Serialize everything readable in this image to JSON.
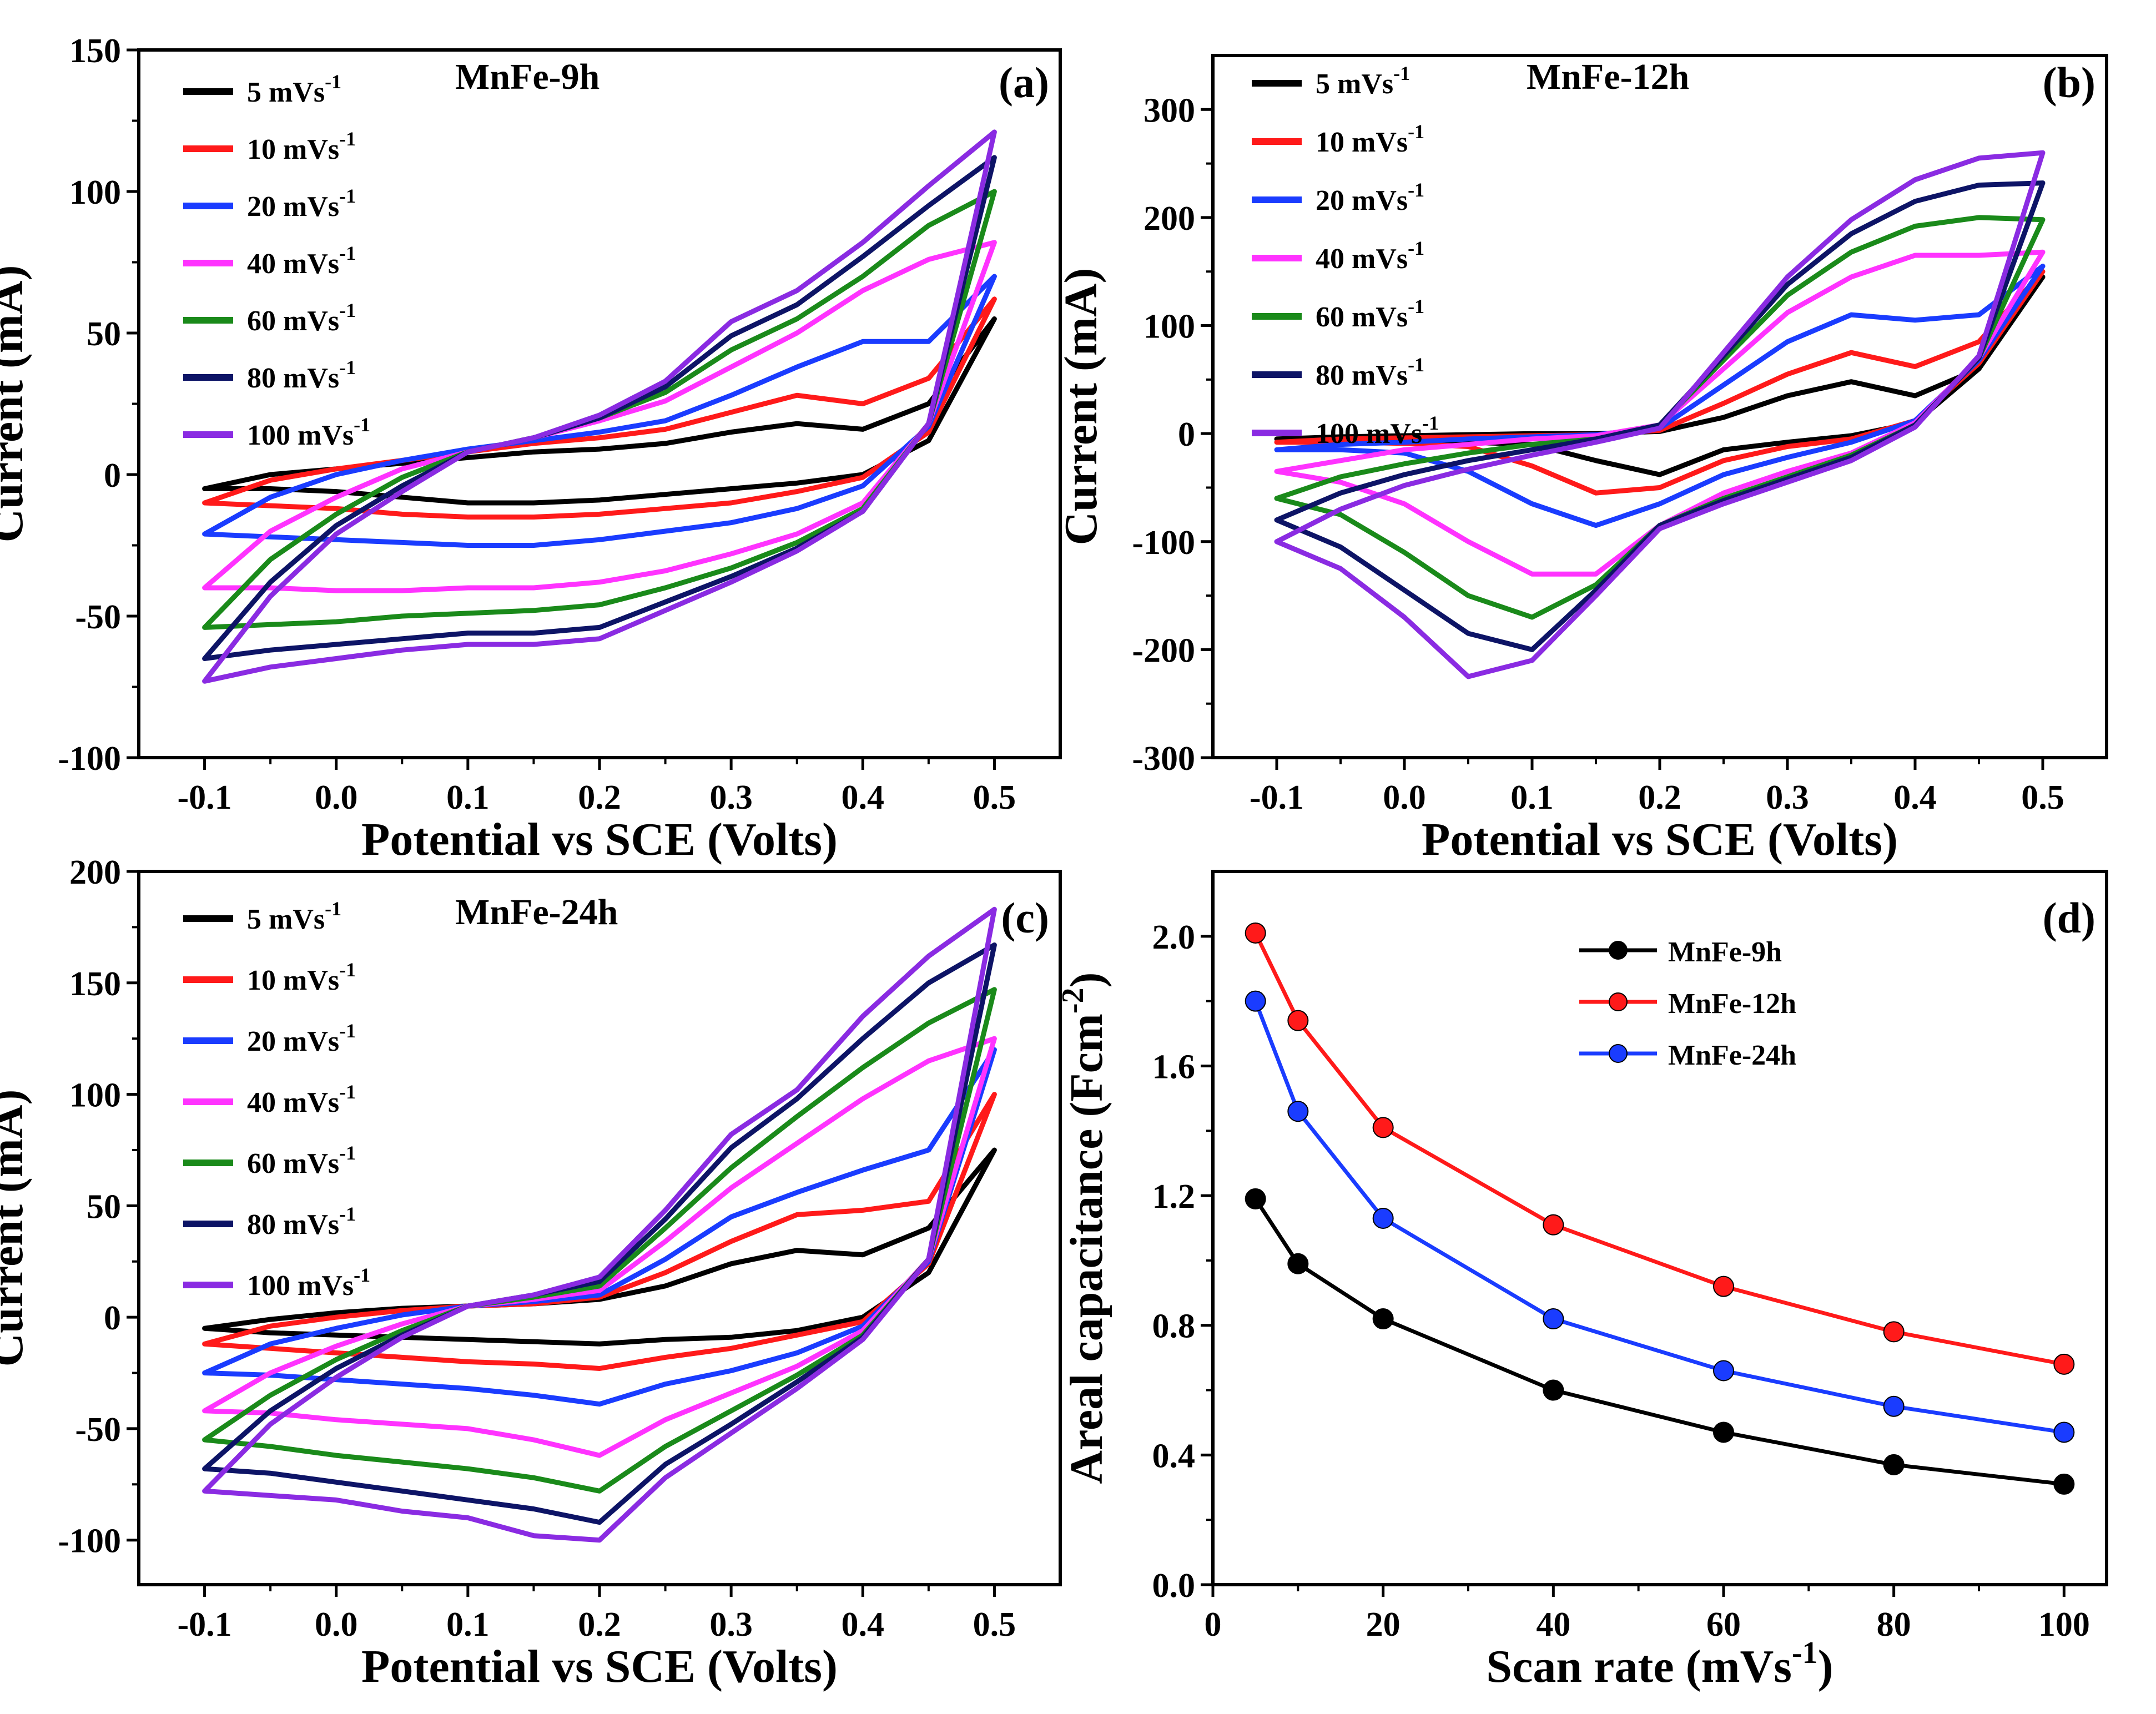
{
  "colors": {
    "5": "#000000",
    "10": "#ff1a1a",
    "20": "#1a3cff",
    "40": "#ff33ff",
    "60": "#1a8a1a",
    "80": "#0d1466",
    "100": "#8a2be2"
  },
  "rate_labels": {
    "5": "5 mVs",
    "10": "10 mVs",
    "20": "20 mVs",
    "40": "40 mVs",
    "60": "60 mVs",
    "80": "80 mVs",
    "100": "100 mVs"
  },
  "rate_unit_exponent": "-1",
  "chart_data": [
    {
      "type": "line",
      "panel": "(a)",
      "title": "MnFe-9h",
      "xlabel": "Potential vs SCE (Volts)",
      "ylabel": "Current  (mA)",
      "xlim": [
        -0.15,
        0.55
      ],
      "ylim": [
        -100,
        150
      ],
      "xticks": [
        -0.1,
        0.0,
        0.1,
        0.2,
        0.3,
        0.4,
        0.5
      ],
      "xtick_labels": [
        "-0.1",
        "0.0",
        "0.1",
        "0.2",
        "0.3",
        "0.4",
        "0.5"
      ],
      "yticks": [
        -100,
        -50,
        0,
        50,
        100,
        150
      ],
      "ytick_labels": [
        "-100",
        "-50",
        "0",
        "50",
        "100",
        "150"
      ],
      "x": [
        -0.1,
        -0.05,
        0.0,
        0.05,
        0.1,
        0.15,
        0.2,
        0.25,
        0.3,
        0.35,
        0.4,
        0.45,
        0.5
      ],
      "series": [
        {
          "rate": "5",
          "anodic": [
            -5,
            0,
            2,
            4,
            6,
            8,
            9,
            11,
            15,
            18,
            16,
            25,
            55
          ],
          "cathodic": [
            -5,
            -5,
            -6,
            -8,
            -10,
            -10,
            -9,
            -7,
            -5,
            -3,
            0,
            12,
            55
          ]
        },
        {
          "rate": "10",
          "anodic": [
            -10,
            -2,
            2,
            5,
            8,
            11,
            13,
            16,
            22,
            28,
            25,
            34,
            62
          ],
          "cathodic": [
            -10,
            -11,
            -12,
            -14,
            -15,
            -15,
            -14,
            -12,
            -10,
            -6,
            -1,
            15,
            62
          ]
        },
        {
          "rate": "20",
          "anodic": [
            -21,
            -8,
            0,
            5,
            9,
            12,
            15,
            19,
            28,
            38,
            47,
            47,
            70
          ],
          "cathodic": [
            -21,
            -22,
            -23,
            -24,
            -25,
            -25,
            -23,
            -20,
            -17,
            -12,
            -4,
            17,
            70
          ]
        },
        {
          "rate": "40",
          "anodic": [
            -40,
            -20,
            -8,
            2,
            8,
            13,
            19,
            26,
            38,
            50,
            65,
            76,
            82
          ],
          "cathodic": [
            -40,
            -40,
            -41,
            -41,
            -40,
            -40,
            -38,
            -34,
            -28,
            -21,
            -10,
            18,
            82
          ]
        },
        {
          "rate": "60",
          "anodic": [
            -54,
            -30,
            -14,
            -1,
            8,
            13,
            20,
            29,
            44,
            55,
            70,
            88,
            100
          ],
          "cathodic": [
            -54,
            -53,
            -52,
            -50,
            -49,
            -48,
            -46,
            -40,
            -33,
            -24,
            -12,
            18,
            100
          ]
        },
        {
          "rate": "80",
          "anodic": [
            -65,
            -38,
            -18,
            -4,
            8,
            13,
            20,
            31,
            49,
            60,
            77,
            95,
            112
          ],
          "cathodic": [
            -65,
            -62,
            -60,
            -58,
            -56,
            -56,
            -54,
            -45,
            -36,
            -26,
            -13,
            18,
            112
          ]
        },
        {
          "rate": "100",
          "anodic": [
            -73,
            -43,
            -21,
            -6,
            8,
            13,
            21,
            33,
            54,
            65,
            82,
            102,
            121
          ],
          "cathodic": [
            -73,
            -68,
            -65,
            -62,
            -60,
            -60,
            -58,
            -48,
            -38,
            -27,
            -13,
            18,
            121
          ]
        }
      ]
    },
    {
      "type": "line",
      "panel": "(b)",
      "title": "MnFe-12h",
      "xlabel": "Potential vs SCE (Volts)",
      "ylabel": "Current  (mA)",
      "xlim": [
        -0.15,
        0.55
      ],
      "ylim": [
        -300,
        350
      ],
      "xticks": [
        -0.1,
        0.0,
        0.1,
        0.2,
        0.3,
        0.4,
        0.5
      ],
      "xtick_labels": [
        "-0.1",
        "0.0",
        "0.1",
        "0.2",
        "0.3",
        "0.4",
        "0.5"
      ],
      "yticks": [
        -300,
        -200,
        -100,
        0,
        100,
        200,
        300
      ],
      "ytick_labels": [
        "-300",
        "-200",
        "-100",
        "0",
        "100",
        "200",
        "300"
      ],
      "x": [
        -0.1,
        -0.05,
        0.0,
        0.05,
        0.1,
        0.15,
        0.2,
        0.25,
        0.3,
        0.35,
        0.4,
        0.45,
        0.5
      ],
      "series": [
        {
          "rate": "5",
          "anodic": [
            -5,
            -3,
            -2,
            -1,
            0,
            0,
            2,
            15,
            35,
            48,
            35,
            60,
            145
          ],
          "cathodic": [
            -5,
            -6,
            -7,
            -8,
            -10,
            -25,
            -38,
            -15,
            -8,
            -2,
            10,
            60,
            145
          ]
        },
        {
          "rate": "10",
          "anodic": [
            -8,
            -5,
            -4,
            -3,
            -2,
            -1,
            3,
            28,
            55,
            75,
            62,
            85,
            150
          ],
          "cathodic": [
            -8,
            -8,
            -9,
            -12,
            -30,
            -55,
            -50,
            -25,
            -12,
            -5,
            12,
            65,
            150
          ]
        },
        {
          "rate": "20",
          "anodic": [
            -15,
            -10,
            -8,
            -5,
            -3,
            -1,
            5,
            45,
            85,
            110,
            105,
            110,
            155
          ],
          "cathodic": [
            -15,
            -15,
            -18,
            -35,
            -65,
            -85,
            -65,
            -38,
            -22,
            -8,
            12,
            68,
            155
          ]
        },
        {
          "rate": "40",
          "anodic": [
            -35,
            -25,
            -15,
            -10,
            -5,
            -2,
            8,
            60,
            112,
            145,
            165,
            165,
            168
          ],
          "cathodic": [
            -35,
            -45,
            -65,
            -100,
            -130,
            -130,
            -85,
            -55,
            -35,
            -18,
            10,
            70,
            168
          ]
        },
        {
          "rate": "60",
          "anodic": [
            -60,
            -40,
            -28,
            -18,
            -10,
            -5,
            8,
            68,
            128,
            168,
            192,
            200,
            198
          ],
          "cathodic": [
            -60,
            -75,
            -110,
            -150,
            -170,
            -140,
            -85,
            -60,
            -40,
            -20,
            8,
            70,
            198
          ]
        },
        {
          "rate": "80",
          "anodic": [
            -80,
            -55,
            -38,
            -25,
            -15,
            -5,
            8,
            72,
            138,
            185,
            215,
            230,
            232
          ],
          "cathodic": [
            -80,
            -105,
            -145,
            -185,
            -200,
            -145,
            -85,
            -62,
            -42,
            -22,
            8,
            70,
            232
          ]
        },
        {
          "rate": "100",
          "anodic": [
            -100,
            -70,
            -48,
            -33,
            -20,
            -8,
            5,
            75,
            145,
            198,
            235,
            255,
            260
          ],
          "cathodic": [
            -100,
            -125,
            -170,
            -225,
            -210,
            -150,
            -88,
            -65,
            -45,
            -25,
            6,
            72,
            260
          ]
        }
      ]
    },
    {
      "type": "line",
      "panel": "(c)",
      "title": "MnFe-24h",
      "xlabel": "Potential vs SCE (Volts)",
      "ylabel": "Current  (mA)",
      "xlim": [
        -0.15,
        0.55
      ],
      "ylim": [
        -120,
        200
      ],
      "xticks": [
        -0.1,
        0.0,
        0.1,
        0.2,
        0.3,
        0.4,
        0.5
      ],
      "xtick_labels": [
        "-0.1",
        "0.0",
        "0.1",
        "0.2",
        "0.3",
        "0.4",
        "0.5"
      ],
      "yticks": [
        -100,
        -50,
        0,
        50,
        100,
        150,
        200
      ],
      "ytick_labels": [
        "-100",
        "-50",
        "0",
        "50",
        "100",
        "150",
        "200"
      ],
      "x": [
        -0.1,
        -0.05,
        0.0,
        0.05,
        0.1,
        0.15,
        0.2,
        0.25,
        0.3,
        0.35,
        0.4,
        0.45,
        0.5
      ],
      "series": [
        {
          "rate": "5",
          "anodic": [
            -5,
            -1,
            2,
            4,
            5,
            6,
            8,
            14,
            24,
            30,
            28,
            40,
            75
          ],
          "cathodic": [
            -5,
            -7,
            -8,
            -9,
            -10,
            -11,
            -12,
            -10,
            -9,
            -6,
            0,
            20,
            75
          ]
        },
        {
          "rate": "10",
          "anodic": [
            -12,
            -4,
            0,
            3,
            5,
            6,
            9,
            20,
            34,
            46,
            48,
            52,
            100
          ],
          "cathodic": [
            -12,
            -14,
            -16,
            -18,
            -20,
            -21,
            -23,
            -18,
            -14,
            -8,
            -2,
            24,
            100
          ]
        },
        {
          "rate": "20",
          "anodic": [
            -25,
            -12,
            -5,
            1,
            5,
            7,
            10,
            26,
            45,
            56,
            66,
            75,
            120
          ],
          "cathodic": [
            -25,
            -26,
            -28,
            -30,
            -32,
            -35,
            -39,
            -30,
            -24,
            -16,
            -4,
            25,
            120
          ]
        },
        {
          "rate": "40",
          "anodic": [
            -42,
            -25,
            -13,
            -3,
            5,
            8,
            12,
            34,
            58,
            78,
            98,
            115,
            125
          ],
          "cathodic": [
            -42,
            -43,
            -46,
            -48,
            -50,
            -55,
            -62,
            -46,
            -34,
            -22,
            -6,
            26,
            125
          ]
        },
        {
          "rate": "60",
          "anodic": [
            -55,
            -35,
            -19,
            -6,
            5,
            9,
            14,
            40,
            67,
            90,
            112,
            132,
            147
          ],
          "cathodic": [
            -55,
            -58,
            -62,
            -65,
            -68,
            -72,
            -78,
            -58,
            -42,
            -26,
            -8,
            26,
            147
          ]
        },
        {
          "rate": "80",
          "anodic": [
            -68,
            -42,
            -23,
            -8,
            5,
            10,
            16,
            44,
            76,
            98,
            125,
            150,
            167
          ],
          "cathodic": [
            -68,
            -70,
            -74,
            -78,
            -82,
            -86,
            -92,
            -66,
            -48,
            -29,
            -9,
            26,
            167
          ]
        },
        {
          "rate": "100",
          "anodic": [
            -78,
            -48,
            -27,
            -9,
            5,
            10,
            18,
            48,
            82,
            102,
            135,
            162,
            183
          ],
          "cathodic": [
            -78,
            -80,
            -82,
            -87,
            -90,
            -98,
            -100,
            -72,
            -52,
            -32,
            -10,
            26,
            183
          ]
        }
      ]
    },
    {
      "type": "line",
      "panel": "(d)",
      "title": "",
      "xlabel": "Scan rate (mVs",
      "xlabel_sup": "-1",
      "xlabel_tail": ")",
      "ylabel": "Areal capacitance (Fcm",
      "ylabel_sup": "-2",
      "ylabel_tail": ")",
      "xlim": [
        0,
        105
      ],
      "ylim": [
        0.0,
        2.2
      ],
      "xticks": [
        0,
        20,
        40,
        60,
        80,
        100
      ],
      "xtick_labels": [
        "0",
        "20",
        "40",
        "60",
        "80",
        "100"
      ],
      "yticks": [
        0.0,
        0.4,
        0.8,
        1.2,
        1.6,
        2.0
      ],
      "ytick_labels": [
        "0.0",
        "0.4",
        "0.8",
        "1.2",
        "1.6",
        "2.0"
      ],
      "x": [
        5,
        10,
        20,
        40,
        60,
        80,
        100
      ],
      "series": [
        {
          "name": "MnFe-9h",
          "color": "#000000",
          "values": [
            1.19,
            0.99,
            0.82,
            0.6,
            0.47,
            0.37,
            0.31
          ]
        },
        {
          "name": "MnFe-12h",
          "color": "#ff1a1a",
          "values": [
            2.01,
            1.74,
            1.41,
            1.11,
            0.92,
            0.78,
            0.68
          ]
        },
        {
          "name": "MnFe-24h",
          "color": "#1a3cff",
          "values": [
            1.8,
            1.46,
            1.13,
            0.82,
            0.66,
            0.55,
            0.47
          ]
        }
      ]
    }
  ]
}
